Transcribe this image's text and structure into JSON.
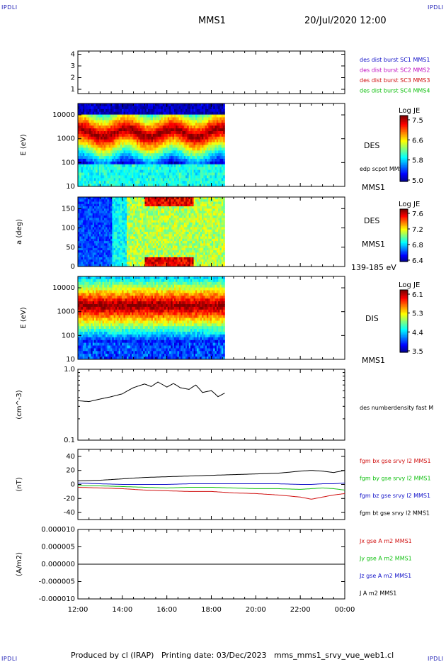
{
  "corner_label": "IPDLI",
  "header": {
    "spacecraft": "MMS1",
    "datetime": "20/Jul/2020 12:00"
  },
  "footer": {
    "text": "Produced by cl (IRAP)   Printing date: 03/Dec/2023   mms_mms1_srvy_vue_web1.cl"
  },
  "chart_data": [
    {
      "type": "table",
      "panel": "availability",
      "yticks": [
        "1",
        "2",
        "3",
        "4"
      ],
      "legend": [
        {
          "text": "des dist burst SC1 MMS1",
          "color": "#1010c8"
        },
        {
          "text": "des dist burst SC2 MMS2",
          "color": "#c010c0"
        },
        {
          "text": "des dist burst SC3 MMS3",
          "color": "#d01010"
        },
        {
          "text": "des dist burst SC4 MMS4",
          "color": "#10c010"
        }
      ]
    },
    {
      "type": "heatmap",
      "panel": "des-energy",
      "ylabel": "E (eV)",
      "yticks": [
        "10",
        "100",
        "1000",
        "10000"
      ],
      "ylim": [
        10,
        30000
      ],
      "yscale": "log",
      "x_range_hours": [
        12,
        18.6
      ],
      "side_label": "DES",
      "extra_label": "edp scpot MMS1",
      "bottom_label": "MMS1",
      "colorbar": {
        "title": "Log JE",
        "ticks": [
          "7.5",
          "6.6",
          "5.8",
          "5.0"
        ],
        "range": [
          5.0,
          7.6
        ]
      }
    },
    {
      "type": "heatmap",
      "panel": "des-pitch",
      "ylabel": "a (deg)",
      "yticks": [
        "0",
        "50",
        "100",
        "150"
      ],
      "ylim": [
        0,
        180
      ],
      "x_range_hours": [
        12,
        18.6
      ],
      "side_label": "DES",
      "extra_label": "MMS1",
      "bottom_label": "139-185 eV",
      "colorbar": {
        "title": "Log JE",
        "ticks": [
          "7.6",
          "7.2",
          "6.8",
          "6.4"
        ],
        "range": [
          6.4,
          7.7
        ]
      }
    },
    {
      "type": "heatmap",
      "panel": "dis-energy",
      "ylabel": "E (eV)",
      "yticks": [
        "10",
        "100",
        "1000",
        "10000"
      ],
      "ylim": [
        10,
        30000
      ],
      "yscale": "log",
      "x_range_hours": [
        12,
        18.6
      ],
      "side_label": "DIS",
      "bottom_label": "MMS1",
      "colorbar": {
        "title": "Log JE",
        "ticks": [
          "6.1",
          "5.3",
          "4.4",
          "3.5"
        ],
        "range": [
          3.5,
          6.2
        ]
      }
    },
    {
      "type": "line",
      "panel": "density",
      "ylabel": "(cm^-3)",
      "yscale": "log",
      "ylim": [
        0.1,
        1.0
      ],
      "yticks": [
        "0.1",
        "1.0"
      ],
      "series": [
        {
          "name": "des numberdensity fast M",
          "color": "#000000",
          "x": [
            12.0,
            12.5,
            13.0,
            13.5,
            14.0,
            14.5,
            15.0,
            15.3,
            15.6,
            16.0,
            16.3,
            16.6,
            17.0,
            17.3,
            17.6,
            18.0,
            18.3,
            18.6
          ],
          "y": [
            0.36,
            0.35,
            0.38,
            0.41,
            0.45,
            0.55,
            0.62,
            0.57,
            0.66,
            0.56,
            0.63,
            0.55,
            0.52,
            0.6,
            0.47,
            0.5,
            0.41,
            0.46
          ]
        }
      ]
    },
    {
      "type": "line",
      "panel": "bfield",
      "ylabel": "(nT)",
      "ylim": [
        -50,
        50
      ],
      "yticks": [
        "-40",
        "-20",
        "0",
        "20",
        "40"
      ],
      "series": [
        {
          "name": "fgm bx gse srvy l2 MMS1",
          "color": "#d01010",
          "x": [
            12,
            13,
            14,
            15,
            16,
            17,
            18,
            19,
            20,
            21,
            22,
            22.5,
            23,
            23.5,
            24
          ],
          "y": [
            -4,
            -5,
            -6,
            -8,
            -9,
            -10,
            -10,
            -12,
            -13,
            -15,
            -18,
            -21,
            -18,
            -15,
            -13
          ]
        },
        {
          "name": "fgm by gse srvy l2 MMS1",
          "color": "#10c010",
          "x": [
            12,
            13,
            14,
            15,
            16,
            17,
            18,
            19,
            20,
            21,
            22,
            22.5,
            23,
            23.5,
            24
          ],
          "y": [
            -2,
            -2,
            -3,
            -4,
            -5,
            -4,
            -4,
            -5,
            -6,
            -6,
            -7,
            -6,
            -5,
            -6,
            -8
          ]
        },
        {
          "name": "fgm bz gse srvy l2 MMS1",
          "color": "#1010c8",
          "x": [
            12,
            13,
            14,
            15,
            16,
            17,
            18,
            19,
            20,
            21,
            22,
            22.5,
            23,
            23.5,
            24
          ],
          "y": [
            2,
            1,
            0,
            0,
            0,
            1,
            1,
            1,
            1,
            1,
            0,
            0,
            1,
            1,
            2
          ]
        },
        {
          "name": "fgm bt gse srvy l2 MMS1",
          "color": "#000000",
          "x": [
            12,
            13,
            14,
            15,
            16,
            17,
            18,
            19,
            20,
            21,
            22,
            22.5,
            23,
            23.5,
            24
          ],
          "y": [
            5,
            6,
            8,
            10,
            11,
            12,
            13,
            14,
            15,
            16,
            19,
            20,
            19,
            17,
            20
          ]
        }
      ]
    },
    {
      "type": "line",
      "panel": "current",
      "ylabel": "(A/m2)",
      "ylim": [
        -1e-05,
        1e-05
      ],
      "yticks": [
        "-0.000010",
        "-0.000005",
        "0.000000",
        "0.000005",
        "0.000010"
      ],
      "series": [
        {
          "name": "Jx gse A m2 MMS1",
          "color": "#d01010"
        },
        {
          "name": "Jy gse A m2 MMS1",
          "color": "#10c010"
        },
        {
          "name": "Jz gse A m2 MMS1",
          "color": "#1010c8"
        },
        {
          "name": "J A m2 MMS1",
          "color": "#000000",
          "x": [
            12,
            24
          ],
          "y": [
            0,
            0
          ]
        }
      ]
    }
  ],
  "xaxis": {
    "ticks": [
      "12:00",
      "14:00",
      "16:00",
      "18:00",
      "20:00",
      "22:00",
      "00:00"
    ],
    "range_hours": [
      12,
      24
    ]
  }
}
